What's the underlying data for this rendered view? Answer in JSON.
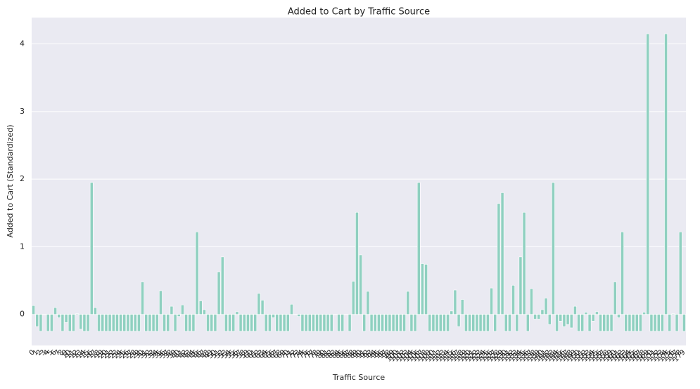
{
  "chart_data": {
    "type": "bar",
    "title": "Added to Cart by Traffic Source",
    "x_label": "Traffic Source",
    "y_label": "Added to Cart (Standardized)",
    "categories": [
      "0",
      "1",
      "2",
      "3",
      "4",
      "5",
      "6",
      "7",
      "8",
      "9",
      "10",
      "11",
      "12",
      "13",
      "14",
      "15",
      "16",
      "17",
      "18",
      "19",
      "20",
      "21",
      "22",
      "23",
      "24",
      "25",
      "26",
      "27",
      "28",
      "29",
      "30",
      "31",
      "32",
      "33",
      "34",
      "35",
      "36",
      "37",
      "38",
      "39",
      "40",
      "41",
      "42",
      "43",
      "44",
      "45",
      "46",
      "47",
      "48",
      "49",
      "50",
      "51",
      "52",
      "53",
      "54",
      "55",
      "56",
      "57",
      "58",
      "59",
      "60",
      "61",
      "62",
      "63",
      "64",
      "65",
      "66",
      "67",
      "68",
      "69",
      "70",
      "71",
      "72",
      "73",
      "74",
      "75",
      "76",
      "77",
      "78",
      "79",
      "80",
      "81",
      "82",
      "83",
      "84",
      "85",
      "86",
      "87",
      "88",
      "89",
      "90",
      "91",
      "92",
      "93",
      "94",
      "95",
      "96",
      "97",
      "98",
      "99",
      "100",
      "101",
      "102",
      "103",
      "104",
      "105",
      "106",
      "107",
      "108",
      "109",
      "110",
      "111",
      "112",
      "113",
      "114",
      "115",
      "116",
      "117",
      "118",
      "119",
      "120",
      "121",
      "122",
      "123",
      "124",
      "125",
      "126",
      "127",
      "128",
      "129",
      "130",
      "131",
      "132",
      "133",
      "134",
      "135",
      "136",
      "137",
      "138",
      "139",
      "140",
      "141",
      "142",
      "143",
      "144",
      "145",
      "146",
      "147",
      "148",
      "149",
      "150",
      "151",
      "152",
      "153",
      "154",
      "155",
      "156",
      "157",
      "158",
      "159",
      "160",
      "161",
      "162",
      "163",
      "164",
      "165",
      "166",
      "167",
      "168",
      "169",
      "170",
      "171",
      "172",
      "173",
      "174",
      "175",
      "176",
      "177",
      "178",
      "179"
    ],
    "values": [
      0.13,
      -0.18,
      -0.25,
      0,
      -0.25,
      -0.25,
      0.1,
      -0.05,
      -0.25,
      -0.12,
      -0.25,
      -0.25,
      0.01,
      -0.22,
      -0.25,
      -0.25,
      1.95,
      0.1,
      -0.25,
      -0.25,
      -0.25,
      -0.25,
      -0.25,
      -0.25,
      -0.25,
      -0.25,
      -0.25,
      -0.25,
      -0.25,
      -0.25,
      0.48,
      -0.25,
      -0.25,
      -0.25,
      -0.25,
      0.35,
      -0.25,
      -0.25,
      0.12,
      -0.25,
      -0.03,
      0.14,
      -0.25,
      -0.25,
      -0.25,
      1.22,
      0.2,
      0.07,
      -0.25,
      -0.25,
      -0.25,
      0.63,
      0.85,
      -0.25,
      -0.25,
      -0.25,
      0.04,
      -0.25,
      -0.25,
      -0.25,
      -0.25,
      -0.25,
      0.31,
      0.21,
      -0.25,
      -0.25,
      -0.05,
      -0.25,
      -0.25,
      -0.25,
      -0.25,
      0.15,
      0,
      -0.03,
      -0.25,
      -0.25,
      -0.25,
      -0.25,
      -0.25,
      -0.25,
      -0.25,
      -0.25,
      -0.25,
      0,
      -0.25,
      -0.25,
      0,
      -0.25,
      0.49,
      1.51,
      0.88,
      -0.25,
      0.34,
      -0.25,
      -0.25,
      -0.25,
      -0.25,
      -0.25,
      -0.25,
      -0.25,
      -0.25,
      -0.25,
      -0.25,
      0.34,
      -0.25,
      -0.25,
      1.95,
      0.75,
      0.74,
      -0.25,
      -0.25,
      -0.25,
      -0.25,
      -0.25,
      -0.25,
      0.05,
      0.36,
      -0.18,
      0.22,
      -0.25,
      -0.25,
      -0.25,
      -0.25,
      -0.25,
      -0.25,
      -0.25,
      0.39,
      -0.25,
      1.64,
      1.8,
      -0.25,
      -0.25,
      0.43,
      -0.25,
      0.85,
      1.51,
      -0.25,
      0.38,
      -0.07,
      -0.07,
      0.07,
      0.24,
      -0.15,
      1.95,
      -0.25,
      -0.1,
      -0.18,
      -0.15,
      -0.2,
      0.12,
      -0.25,
      -0.25,
      0.03,
      -0.25,
      -0.1,
      0.04,
      -0.25,
      -0.25,
      -0.25,
      -0.25,
      0.48,
      -0.05,
      1.22,
      -0.25,
      -0.25,
      -0.25,
      -0.25,
      -0.25,
      0.03,
      4.15,
      -0.25,
      -0.25,
      -0.25,
      -0.25,
      4.15,
      -0.25,
      0.01,
      -0.25,
      1.22,
      -0.25
    ],
    "color": "#8fd0c0",
    "ylim": [
      -0.46,
      4.39
    ],
    "yticks": [
      0,
      1,
      2,
      3,
      4
    ],
    "grid": true
  }
}
